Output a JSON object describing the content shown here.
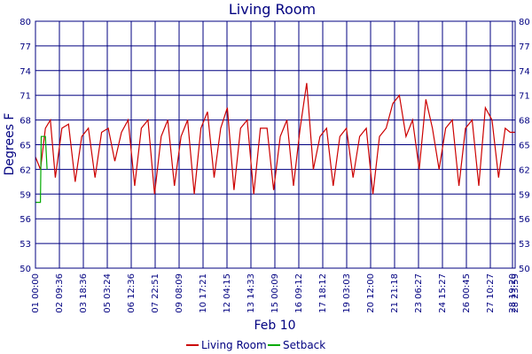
{
  "chart_data": {
    "type": "line",
    "title": "Living Room",
    "xlabel": "Feb 10",
    "ylabel": "Degrees F",
    "ylim": [
      50,
      80
    ],
    "yticks": [
      50,
      53,
      56,
      59,
      62,
      65,
      68,
      71,
      74,
      77,
      80
    ],
    "xticks": [
      "01 00:00",
      "02 09:36",
      "03 18:36",
      "05 03:24",
      "06 12:36",
      "07 22:51",
      "09 08:09",
      "10 17:21",
      "12 04:15",
      "13 14:33",
      "15 00:09",
      "16 09:12",
      "17 18:12",
      "19 03:03",
      "20 12:00",
      "21 21:18",
      "23 06:27",
      "24 15:27",
      "26 00:45",
      "27 10:27",
      "28 19:20",
      "28 23:59"
    ],
    "grid": true,
    "legend_position": "bottom-center",
    "colors": {
      "axis": "#000080",
      "grid": "#000080",
      "living_room": "#cc0000",
      "setback": "#00aa00"
    },
    "series": [
      {
        "name": "Living Room",
        "color": "#cc0000",
        "values": [
          {
            "t": 0.0,
            "y": 63.5
          },
          {
            "t": 0.3,
            "y": 62
          },
          {
            "t": 0.6,
            "y": 67
          },
          {
            "t": 0.9,
            "y": 68
          },
          {
            "t": 1.2,
            "y": 61
          },
          {
            "t": 1.6,
            "y": 67
          },
          {
            "t": 2.0,
            "y": 67.5
          },
          {
            "t": 2.4,
            "y": 60.5
          },
          {
            "t": 2.8,
            "y": 66
          },
          {
            "t": 3.2,
            "y": 67
          },
          {
            "t": 3.6,
            "y": 61
          },
          {
            "t": 4.0,
            "y": 66.5
          },
          {
            "t": 4.4,
            "y": 67
          },
          {
            "t": 4.8,
            "y": 63
          },
          {
            "t": 5.2,
            "y": 66.5
          },
          {
            "t": 5.6,
            "y": 68
          },
          {
            "t": 6.0,
            "y": 60
          },
          {
            "t": 6.4,
            "y": 67
          },
          {
            "t": 6.8,
            "y": 68
          },
          {
            "t": 7.2,
            "y": 59
          },
          {
            "t": 7.6,
            "y": 66
          },
          {
            "t": 8.0,
            "y": 68
          },
          {
            "t": 8.4,
            "y": 60
          },
          {
            "t": 8.8,
            "y": 66
          },
          {
            "t": 9.2,
            "y": 68
          },
          {
            "t": 9.6,
            "y": 59
          },
          {
            "t": 10.0,
            "y": 67
          },
          {
            "t": 10.4,
            "y": 69
          },
          {
            "t": 10.8,
            "y": 61
          },
          {
            "t": 11.2,
            "y": 67
          },
          {
            "t": 11.6,
            "y": 69.5
          },
          {
            "t": 12.0,
            "y": 59.5
          },
          {
            "t": 12.4,
            "y": 67
          },
          {
            "t": 12.8,
            "y": 68
          },
          {
            "t": 13.2,
            "y": 59
          },
          {
            "t": 13.6,
            "y": 67
          },
          {
            "t": 14.0,
            "y": 67
          },
          {
            "t": 14.4,
            "y": 59.5
          },
          {
            "t": 14.8,
            "y": 66
          },
          {
            "t": 15.2,
            "y": 68
          },
          {
            "t": 15.6,
            "y": 60
          },
          {
            "t": 16.0,
            "y": 67
          },
          {
            "t": 16.4,
            "y": 72.5
          },
          {
            "t": 16.8,
            "y": 62
          },
          {
            "t": 17.2,
            "y": 66
          },
          {
            "t": 17.6,
            "y": 67
          },
          {
            "t": 18.0,
            "y": 60
          },
          {
            "t": 18.4,
            "y": 66
          },
          {
            "t": 18.8,
            "y": 67
          },
          {
            "t": 19.2,
            "y": 61
          },
          {
            "t": 19.6,
            "y": 66
          },
          {
            "t": 20.0,
            "y": 67
          },
          {
            "t": 20.4,
            "y": 59
          },
          {
            "t": 20.8,
            "y": 66
          },
          {
            "t": 21.2,
            "y": 67
          },
          {
            "t": 21.6,
            "y": 70
          },
          {
            "t": 22.0,
            "y": 71
          },
          {
            "t": 22.4,
            "y": 66
          },
          {
            "t": 22.8,
            "y": 68
          },
          {
            "t": 23.2,
            "y": 62
          },
          {
            "t": 23.6,
            "y": 70.5
          },
          {
            "t": 24.0,
            "y": 67
          },
          {
            "t": 24.4,
            "y": 62
          },
          {
            "t": 24.8,
            "y": 67
          },
          {
            "t": 25.2,
            "y": 68
          },
          {
            "t": 25.6,
            "y": 60
          },
          {
            "t": 26.0,
            "y": 67
          },
          {
            "t": 26.4,
            "y": 68
          },
          {
            "t": 26.8,
            "y": 60
          },
          {
            "t": 27.2,
            "y": 69.5
          },
          {
            "t": 27.6,
            "y": 68
          },
          {
            "t": 28.0,
            "y": 61
          },
          {
            "t": 28.4,
            "y": 67
          },
          {
            "t": 28.7,
            "y": 66.5
          },
          {
            "t": 29.0,
            "y": 66.5
          }
        ]
      },
      {
        "name": "Setback",
        "color": "#00aa00",
        "values": [
          {
            "t": 0.0,
            "y": 58
          },
          {
            "t": 0.3,
            "y": 58
          },
          {
            "t": 0.35,
            "y": 66
          },
          {
            "t": 0.6,
            "y": 66
          },
          {
            "t": 0.7,
            "y": 62
          }
        ]
      }
    ]
  }
}
